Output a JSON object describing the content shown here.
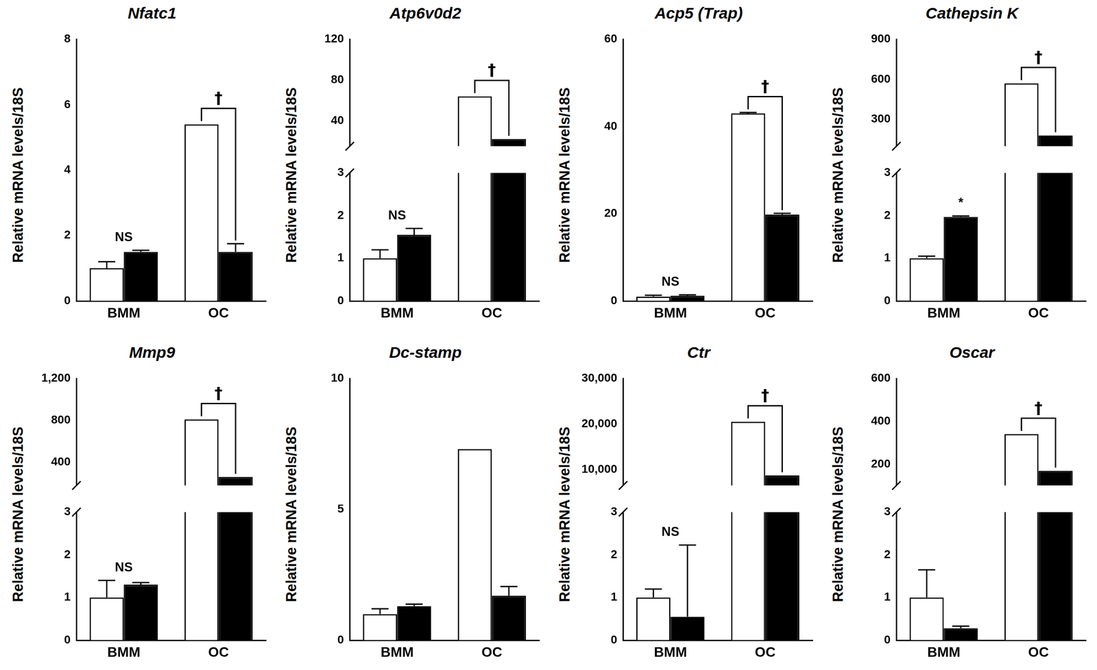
{
  "chart_data": [
    {
      "type": "bar",
      "title": "Nfatc1",
      "y_label": "Relative mRNA levels/18S",
      "categories": [
        "BMM",
        "OC"
      ],
      "series": [
        {
          "color": "#ffffff",
          "values": [
            1.0,
            5.4
          ],
          "errors": [
            0.2,
            0
          ]
        },
        {
          "color": "#000000",
          "values": [
            1.5,
            1.5
          ],
          "errors": [
            0.05,
            0.25
          ]
        }
      ],
      "ylim": [
        0,
        8
      ],
      "yticks": [
        0,
        2,
        4,
        6,
        8
      ],
      "grid": false,
      "annotations": [
        {
          "text": "NS",
          "category": "BMM"
        },
        {
          "text": "†",
          "category": "OC",
          "bracket": true
        }
      ]
    },
    {
      "type": "bar",
      "title": "Atp6v0d2",
      "y_label": "Relative mRNA levels/18S",
      "categories": [
        "BMM",
        "OC"
      ],
      "series": [
        {
          "color": "#ffffff",
          "values": [
            1.0,
            64
          ],
          "errors": [
            0.2,
            0
          ]
        },
        {
          "color": "#000000",
          "values": [
            1.55,
            22
          ],
          "errors": [
            0.15,
            0
          ]
        }
      ],
      "segments": [
        {
          "ylim": [
            0,
            3
          ],
          "yticks": [
            0,
            1,
            2,
            3
          ]
        },
        {
          "ylim": [
            15,
            120
          ],
          "yticks": [
            40,
            80,
            120
          ]
        }
      ],
      "grid": false,
      "annotations": [
        {
          "text": "NS",
          "category": "BMM"
        },
        {
          "text": "†",
          "category": "OC",
          "bracket": true
        }
      ]
    },
    {
      "type": "bar",
      "title": "Acp5 (Trap)",
      "y_label": "Relative mRNA levels/18S",
      "categories": [
        "BMM",
        "OC"
      ],
      "series": [
        {
          "color": "#ffffff",
          "values": [
            1.0,
            43
          ],
          "errors": [
            0.3,
            0.2
          ]
        },
        {
          "color": "#000000",
          "values": [
            1.2,
            19.8
          ],
          "errors": [
            0.2,
            0.3
          ]
        }
      ],
      "ylim": [
        0,
        60
      ],
      "yticks": [
        0,
        20,
        40,
        60
      ],
      "grid": false,
      "annotations": [
        {
          "text": "NS",
          "category": "BMM"
        },
        {
          "text": "†",
          "category": "OC",
          "bracket": true
        }
      ]
    },
    {
      "type": "bar",
      "title": "Cathepsin K",
      "y_label": "Relative mRNA levels/18S",
      "categories": [
        "BMM",
        "OC"
      ],
      "series": [
        {
          "color": "#ffffff",
          "values": [
            1.0,
            570
          ],
          "errors": [
            0.05,
            0
          ]
        },
        {
          "color": "#000000",
          "values": [
            1.97,
            180
          ],
          "errors": [
            0.02,
            0
          ]
        }
      ],
      "segments": [
        {
          "ylim": [
            0,
            3
          ],
          "yticks": [
            0,
            1,
            2,
            3
          ]
        },
        {
          "ylim": [
            100,
            900
          ],
          "yticks": [
            300,
            600,
            900
          ]
        }
      ],
      "grid": false,
      "annotations": [
        {
          "text": "*",
          "category": "BMM",
          "series": 1
        },
        {
          "text": "†",
          "category": "OC",
          "bracket": true
        }
      ]
    },
    {
      "type": "bar",
      "title": "Mmp9",
      "y_label": "Relative mRNA levels/18S",
      "categories": [
        "BMM",
        "OC"
      ],
      "series": [
        {
          "color": "#ffffff",
          "values": [
            1.0,
            810
          ],
          "errors": [
            0.4,
            0
          ]
        },
        {
          "color": "#000000",
          "values": [
            1.3,
            260
          ],
          "errors": [
            0.05,
            0
          ]
        }
      ],
      "segments": [
        {
          "ylim": [
            0,
            3
          ],
          "yticks": [
            0,
            1,
            2,
            3
          ]
        },
        {
          "ylim": [
            180,
            1200
          ],
          "yticks": [
            400,
            800,
            1200
          ]
        }
      ],
      "grid": false,
      "annotations": [
        {
          "text": "NS",
          "category": "BMM"
        },
        {
          "text": "†",
          "category": "OC",
          "bracket": true
        }
      ]
    },
    {
      "type": "bar",
      "title": "Dc-stamp",
      "y_label": "Relative mRNA levels/18S",
      "categories": [
        "BMM",
        "OC"
      ],
      "series": [
        {
          "color": "#ffffff",
          "values": [
            1.0,
            7.3
          ],
          "errors": [
            0.2,
            0
          ]
        },
        {
          "color": "#000000",
          "values": [
            1.3,
            1.7
          ],
          "errors": [
            0.08,
            0.35
          ]
        }
      ],
      "ylim": [
        0,
        10
      ],
      "yticks": [
        0,
        5,
        10
      ],
      "grid": false,
      "annotations": []
    },
    {
      "type": "bar",
      "title": "Ctr",
      "y_label": "Relative mRNA levels/18S",
      "categories": [
        "BMM",
        "OC"
      ],
      "series": [
        {
          "color": "#ffffff",
          "values": [
            1.0,
            20500
          ],
          "errors": [
            0.2,
            0
          ]
        },
        {
          "color": "#000000",
          "values": [
            0.55,
            8700
          ],
          "errors": [
            1.68,
            0
          ]
        }
      ],
      "segments": [
        {
          "ylim": [
            0,
            3
          ],
          "yticks": [
            0,
            1,
            2,
            3
          ]
        },
        {
          "ylim": [
            6500,
            30000
          ],
          "yticks": [
            10000,
            20000,
            30000
          ]
        }
      ],
      "grid": false,
      "annotations": [
        {
          "text": "NS",
          "category": "BMM"
        },
        {
          "text": "†",
          "category": "OC",
          "bracket": true
        }
      ]
    },
    {
      "type": "bar",
      "title": "Oscar",
      "y_label": "Relative mRNA levels/18S",
      "categories": [
        "BMM",
        "OC"
      ],
      "series": [
        {
          "color": "#ffffff",
          "values": [
            1.0,
            340
          ],
          "errors": [
            0.65,
            0
          ]
        },
        {
          "color": "#000000",
          "values": [
            0.28,
            168
          ],
          "errors": [
            0.05,
            0
          ]
        }
      ],
      "segments": [
        {
          "ylim": [
            0,
            3
          ],
          "yticks": [
            0,
            1,
            2,
            3
          ]
        },
        {
          "ylim": [
            100,
            600
          ],
          "yticks": [
            200,
            400,
            600
          ]
        }
      ],
      "grid": false,
      "annotations": [
        {
          "text": "†",
          "category": "OC",
          "bracket": true
        }
      ]
    }
  ]
}
